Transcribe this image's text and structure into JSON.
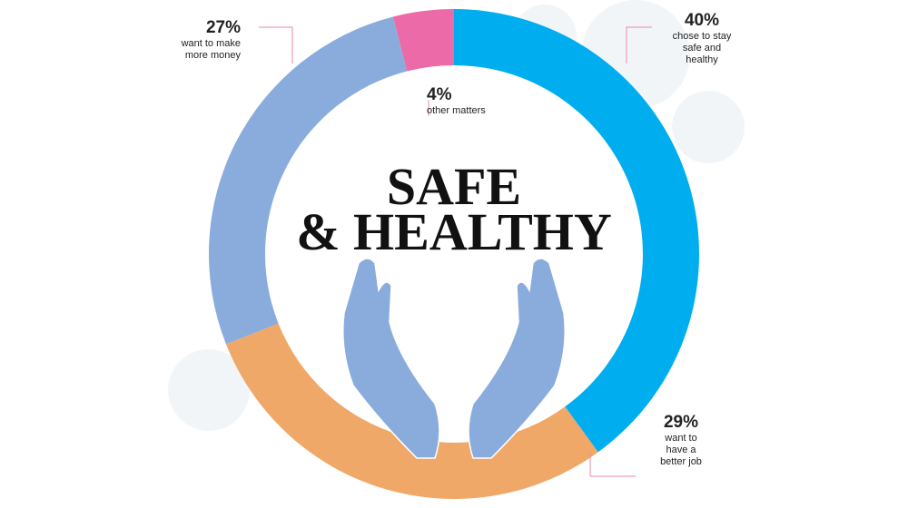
{
  "chart_data": {
    "type": "donut",
    "title_lines": [
      "SAFE",
      "& HEALTHY"
    ],
    "categories": [
      "chose to stay safe and healthy",
      "want to have a better job",
      "want to make more money",
      "other matters"
    ],
    "values": [
      40,
      29,
      27,
      4
    ],
    "value_labels": [
      "40%",
      "29%",
      "27%",
      "4%"
    ],
    "colors": [
      "#00aeef",
      "#f0a868",
      "#8aacdc",
      "#ec6aa8"
    ]
  }
}
